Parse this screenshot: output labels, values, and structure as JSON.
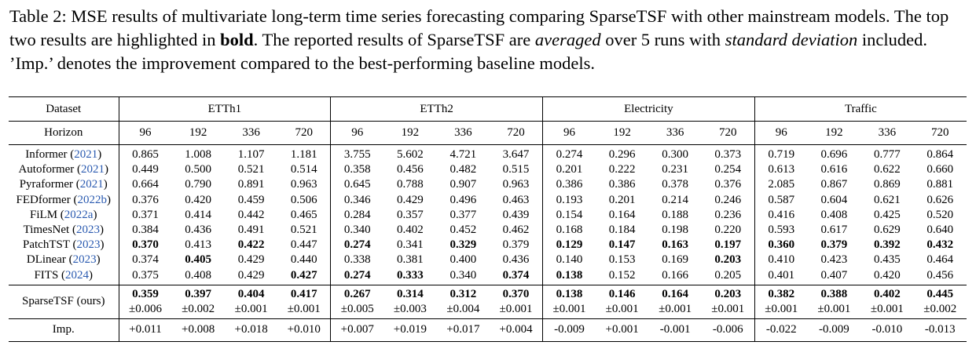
{
  "caption": {
    "part1": "Table 2: MSE results of multivariate long-term time series forecasting comparing SparseTSF with other mainstream models. The top two results are highlighted in ",
    "bold_word": "bold",
    "part2": ". The reported results of SparseTSF are ",
    "italic_averaged": "averaged",
    "part3": " over 5 runs with ",
    "italic_std": "standard deviation",
    "part4": " included. ’Imp.’ denotes the improvement compared to the best-performing baseline models."
  },
  "table": {
    "dataset_label": "Dataset",
    "horizon_label": "Horizon",
    "datasets": [
      "ETTh1",
      "ETTh2",
      "Electricity",
      "Traffic"
    ],
    "horizons": [
      "96",
      "192",
      "336",
      "720"
    ],
    "rows": [
      {
        "model": "Informer",
        "year": "2021",
        "values": [
          "0.865",
          "1.008",
          "1.107",
          "1.181",
          "3.755",
          "5.602",
          "4.721",
          "3.647",
          "0.274",
          "0.296",
          "0.300",
          "0.373",
          "0.719",
          "0.696",
          "0.777",
          "0.864"
        ]
      },
      {
        "model": "Autoformer",
        "year": "2021",
        "values": [
          "0.449",
          "0.500",
          "0.521",
          "0.514",
          "0.358",
          "0.456",
          "0.482",
          "0.515",
          "0.201",
          "0.222",
          "0.231",
          "0.254",
          "0.613",
          "0.616",
          "0.622",
          "0.660"
        ]
      },
      {
        "model": "Pyraformer",
        "year": "2021",
        "values": [
          "0.664",
          "0.790",
          "0.891",
          "0.963",
          "0.645",
          "0.788",
          "0.907",
          "0.963",
          "0.386",
          "0.386",
          "0.378",
          "0.376",
          "2.085",
          "0.867",
          "0.869",
          "0.881"
        ]
      },
      {
        "model": "FEDformer",
        "year": "2022b",
        "values": [
          "0.376",
          "0.420",
          "0.459",
          "0.506",
          "0.346",
          "0.429",
          "0.496",
          "0.463",
          "0.193",
          "0.201",
          "0.214",
          "0.246",
          "0.587",
          "0.604",
          "0.621",
          "0.626"
        ]
      },
      {
        "model": "FiLM",
        "year": "2022a",
        "values": [
          "0.371",
          "0.414",
          "0.442",
          "0.465",
          "0.284",
          "0.357",
          "0.377",
          "0.439",
          "0.154",
          "0.164",
          "0.188",
          "0.236",
          "0.416",
          "0.408",
          "0.425",
          "0.520"
        ]
      },
      {
        "model": "TimesNet",
        "year": "2023",
        "values": [
          "0.384",
          "0.436",
          "0.491",
          "0.521",
          "0.340",
          "0.402",
          "0.452",
          "0.462",
          "0.168",
          "0.184",
          "0.198",
          "0.220",
          "0.593",
          "0.617",
          "0.629",
          "0.640"
        ]
      },
      {
        "model": "PatchTST",
        "year": "2023",
        "values": [
          "0.370",
          "0.413",
          "0.422",
          "0.447",
          "0.274",
          "0.341",
          "0.329",
          "0.379",
          "0.129",
          "0.147",
          "0.163",
          "0.197",
          "0.360",
          "0.379",
          "0.392",
          "0.432"
        ]
      },
      {
        "model": "DLinear",
        "year": "2023",
        "values": [
          "0.374",
          "0.405",
          "0.429",
          "0.440",
          "0.338",
          "0.381",
          "0.400",
          "0.436",
          "0.140",
          "0.153",
          "0.169",
          "0.203",
          "0.410",
          "0.423",
          "0.435",
          "0.464"
        ]
      },
      {
        "model": "FITS",
        "year": "2024",
        "values": [
          "0.375",
          "0.408",
          "0.429",
          "0.427",
          "0.274",
          "0.333",
          "0.340",
          "0.374",
          "0.138",
          "0.152",
          "0.166",
          "0.205",
          "0.401",
          "0.407",
          "0.420",
          "0.456"
        ]
      }
    ],
    "ours": {
      "model": "SparseTSF (ours)",
      "values": [
        "0.359",
        "0.397",
        "0.404",
        "0.417",
        "0.267",
        "0.314",
        "0.312",
        "0.370",
        "0.138",
        "0.146",
        "0.164",
        "0.203",
        "0.382",
        "0.388",
        "0.402",
        "0.445"
      ],
      "stds": [
        "±0.006",
        "±0.002",
        "±0.001",
        "±0.001",
        "±0.005",
        "±0.003",
        "±0.004",
        "±0.001",
        "±0.001",
        "±0.001",
        "±0.001",
        "±0.001",
        "±0.001",
        "±0.001",
        "±0.001",
        "±0.002"
      ]
    },
    "imp": {
      "label": "Imp.",
      "values": [
        "+0.011",
        "+0.008",
        "+0.018",
        "+0.010",
        "+0.007",
        "+0.019",
        "+0.017",
        "+0.004",
        "-0.009",
        "+0.001",
        "-0.001",
        "-0.006",
        "-0.022",
        "-0.009",
        "-0.010",
        "-0.013"
      ]
    }
  }
}
